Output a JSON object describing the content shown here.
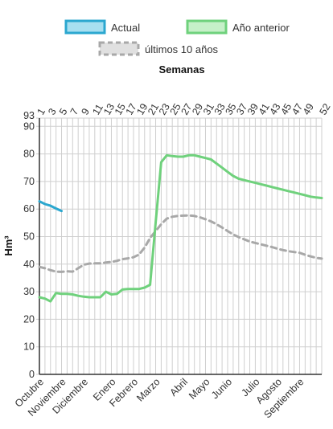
{
  "chart_data": {
    "type": "line",
    "legend": {
      "placement": "top-center",
      "entries": [
        {
          "name": "Actual",
          "color": "#2ba7cf",
          "fill": "#a7dff0"
        },
        {
          "name": "Año anterior",
          "color": "#6fd17c",
          "fill": "#c6f0c8"
        },
        {
          "name": "últimos 10 años",
          "color": "#a8a8a8",
          "fill": "#e0e0e0"
        }
      ]
    },
    "x_top_label": "Semanas",
    "x_top_ticks": [
      1,
      3,
      5,
      7,
      9,
      11,
      13,
      15,
      17,
      19,
      21,
      23,
      25,
      27,
      29,
      31,
      33,
      35,
      37,
      39,
      41,
      43,
      45,
      47,
      49,
      52
    ],
    "xlim": [
      1,
      52
    ],
    "ylabel": "Hm³",
    "ylim": [
      0,
      93
    ],
    "y_ticks": [
      0,
      10,
      20,
      30,
      40,
      50,
      60,
      70,
      80,
      90,
      93
    ],
    "months": [
      {
        "label": "Octubre",
        "week": 1
      },
      {
        "label": "Noviembre",
        "week": 5
      },
      {
        "label": "Diciembre",
        "week": 9
      },
      {
        "label": "Enero",
        "week": 14
      },
      {
        "label": "Febrero",
        "week": 18
      },
      {
        "label": "Marzo",
        "week": 22
      },
      {
        "label": "Abril",
        "week": 27
      },
      {
        "label": "Mayo",
        "week": 31
      },
      {
        "label": "Junio",
        "week": 35
      },
      {
        "label": "Julio",
        "week": 40
      },
      {
        "label": "Agosto",
        "week": 44
      },
      {
        "label": "Septiembre",
        "week": 48
      }
    ],
    "series": [
      {
        "name": "Actual",
        "color": "#2ba7cf",
        "style": "solid",
        "x": [
          1,
          2,
          3,
          4,
          5
        ],
        "y": [
          62.8,
          61.8,
          61.2,
          60.2,
          59.3
        ]
      },
      {
        "name": "Año anterior",
        "color": "#6fd17c",
        "style": "solid",
        "x": [
          1,
          2,
          3,
          4,
          5,
          6,
          7,
          8,
          9,
          10,
          11,
          12,
          13,
          14,
          15,
          16,
          17,
          18,
          19,
          20,
          21,
          22,
          23,
          24,
          25,
          26,
          27,
          28,
          29,
          30,
          31,
          32,
          33,
          34,
          35,
          36,
          37,
          38,
          39,
          40,
          41,
          42,
          43,
          44,
          45,
          46,
          47,
          48,
          49,
          50,
          51,
          52
        ],
        "y": [
          28,
          27.5,
          26.5,
          29.5,
          29.2,
          29.2,
          29,
          28.5,
          28.2,
          28,
          28,
          28,
          30,
          29,
          29.2,
          30.8,
          31,
          31,
          31,
          31.5,
          32.5,
          55,
          77,
          79.5,
          79.2,
          79,
          79,
          79.5,
          79.5,
          79,
          78.5,
          78,
          76.5,
          75,
          73.5,
          72,
          71,
          70.5,
          70,
          69.5,
          69,
          68.5,
          68,
          67.5,
          67,
          66.5,
          66,
          65.5,
          65,
          64.5,
          64.2,
          64
        ]
      },
      {
        "name": "últimos 10 años",
        "color": "#a8a8a8",
        "style": "dashed",
        "x": [
          1,
          2,
          3,
          4,
          5,
          6,
          7,
          8,
          9,
          10,
          11,
          12,
          13,
          14,
          15,
          16,
          17,
          18,
          19,
          20,
          21,
          22,
          23,
          24,
          25,
          26,
          27,
          28,
          29,
          30,
          31,
          32,
          33,
          34,
          35,
          36,
          37,
          38,
          39,
          40,
          41,
          42,
          43,
          44,
          45,
          46,
          47,
          48,
          49,
          50,
          51,
          52
        ],
        "y": [
          39,
          38.5,
          37.8,
          37.3,
          37.2,
          37.4,
          37.3,
          38.5,
          39.8,
          40.2,
          40.3,
          40.3,
          40.6,
          40.8,
          41.2,
          41.8,
          42.1,
          42.5,
          43.5,
          46,
          49.5,
          52,
          54.5,
          56.5,
          57.2,
          57.5,
          57.6,
          57.7,
          57.5,
          57,
          56.3,
          55.5,
          54.5,
          53.3,
          52,
          50.8,
          49.8,
          49,
          48.2,
          47.7,
          47.2,
          46.7,
          46.2,
          45.6,
          45.1,
          44.7,
          44.4,
          44.1,
          43.4,
          42.8,
          42.3,
          42
        ]
      }
    ],
    "grid": true
  }
}
